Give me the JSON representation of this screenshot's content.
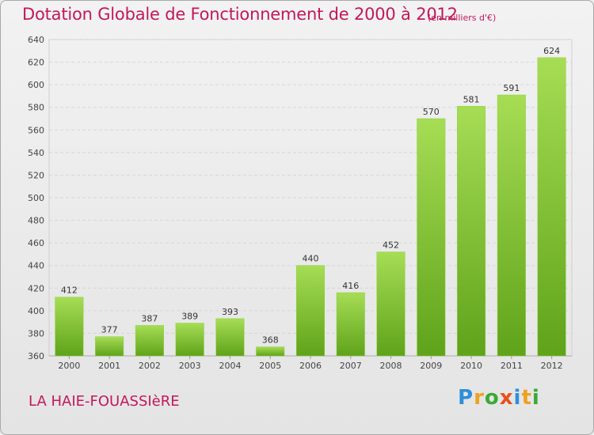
{
  "header": {
    "title": "Dotation Globale de Fonctionnement de 2000 à 2012",
    "unit": "(en milliers d'€)"
  },
  "footer": {
    "city": "LA HAIE-FOUASSIèRE",
    "logo_letters": [
      {
        "ch": "P",
        "color": "#2e8fd8"
      },
      {
        "ch": "r",
        "color": "#f0a020"
      },
      {
        "ch": "o",
        "color": "#3aaa35"
      },
      {
        "ch": "x",
        "color": "#e8501c"
      },
      {
        "ch": "i",
        "color": "#2e8fd8"
      },
      {
        "ch": "t",
        "color": "#f0a020"
      },
      {
        "ch": "i",
        "color": "#3aaa35"
      }
    ]
  },
  "chart_data": {
    "type": "bar",
    "categories": [
      "2000",
      "2001",
      "2002",
      "2003",
      "2004",
      "2005",
      "2006",
      "2007",
      "2008",
      "2009",
      "2010",
      "2011",
      "2012"
    ],
    "values": [
      412,
      377,
      387,
      389,
      393,
      368,
      440,
      416,
      452,
      570,
      581,
      591,
      624
    ],
    "ylim": [
      360,
      640
    ],
    "yticks": [
      360,
      380,
      400,
      420,
      440,
      460,
      480,
      500,
      520,
      540,
      560,
      580,
      600,
      620,
      640
    ],
    "grid": true,
    "bar_color": "#7cc52e",
    "bar_color_light": "#a6dd55",
    "bar_color_dark": "#5fa31a"
  }
}
